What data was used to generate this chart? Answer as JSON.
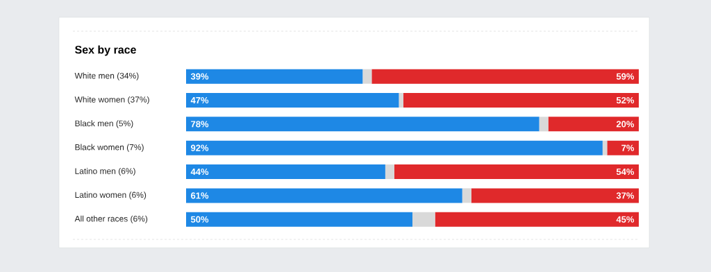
{
  "chart_data": {
    "type": "bar",
    "title": "Sex by race",
    "orientation": "horizontal",
    "stacked": true,
    "tick_labels": "y",
    "categories": [
      "White men (34%)",
      "White women (37%)",
      "Black men (5%)",
      "Black women (7%)",
      "Latino men (6%)",
      "Latino women (6%)",
      "All other races (6%)"
    ],
    "series": [
      {
        "color": "#1e88e5",
        "values": [
          39,
          47,
          78,
          92,
          44,
          61,
          50
        ],
        "value_labels": [
          "39%",
          "47%",
          "78%",
          "92%",
          "44%",
          "61%",
          "50%"
        ]
      },
      {
        "color": "#d9d9d9",
        "values": [
          2,
          1,
          2,
          1,
          2,
          2,
          5
        ],
        "value_labels": [
          null,
          null,
          null,
          null,
          null,
          null,
          null
        ]
      },
      {
        "color": "#e0292b",
        "values": [
          59,
          52,
          20,
          7,
          54,
          37,
          45
        ],
        "value_labels": [
          "59%",
          "52%",
          "20%",
          "7%",
          "54%",
          "37%",
          "45%"
        ]
      }
    ]
  }
}
